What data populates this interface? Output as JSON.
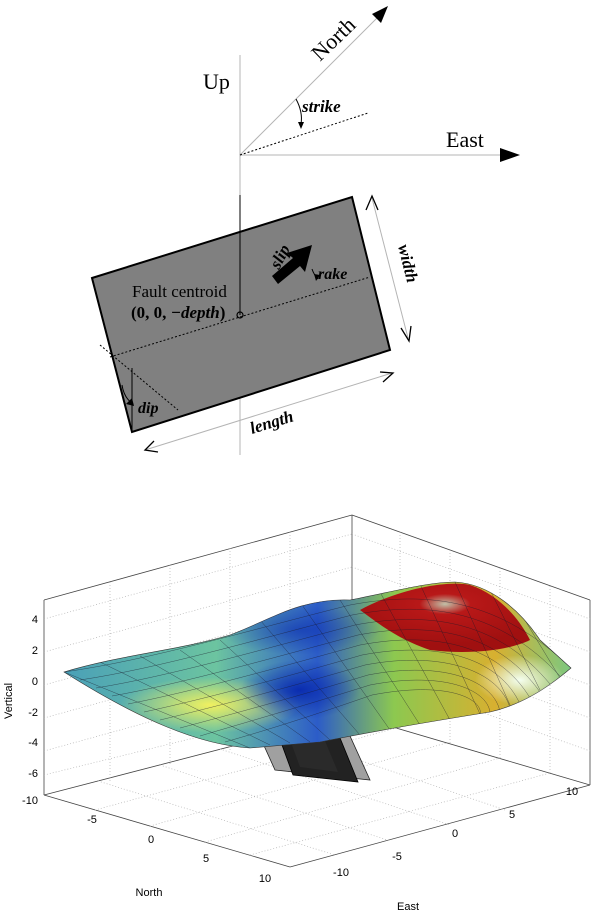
{
  "top_diagram": {
    "axes": {
      "up": "Up",
      "north": "North",
      "east": "East"
    },
    "angle_labels": {
      "strike": "strike",
      "rake": "rake",
      "dip": "dip",
      "slip": "slip"
    },
    "dimension_labels": {
      "width": "width",
      "length": "length"
    },
    "centroid": {
      "label": "Fault centroid",
      "coordinates": [
        "0",
        "0",
        "−depth"
      ]
    },
    "colors": {
      "fault_plane": "#808080",
      "outline": "#000000",
      "axis_lines": "#b4b4b4"
    }
  },
  "bottom_plot": {
    "zlabel": "Vertical",
    "xlabel": "North",
    "ylabel": "East",
    "z_ticks": [
      "4",
      "2",
      "0",
      "-2",
      "-4",
      "-6"
    ],
    "north_ticks": [
      "-10",
      "-5",
      "0",
      "5",
      "10"
    ],
    "east_ticks": [
      "-10",
      "-5",
      "0",
      "5",
      "10"
    ],
    "colormap": "jet",
    "grid": true
  }
}
